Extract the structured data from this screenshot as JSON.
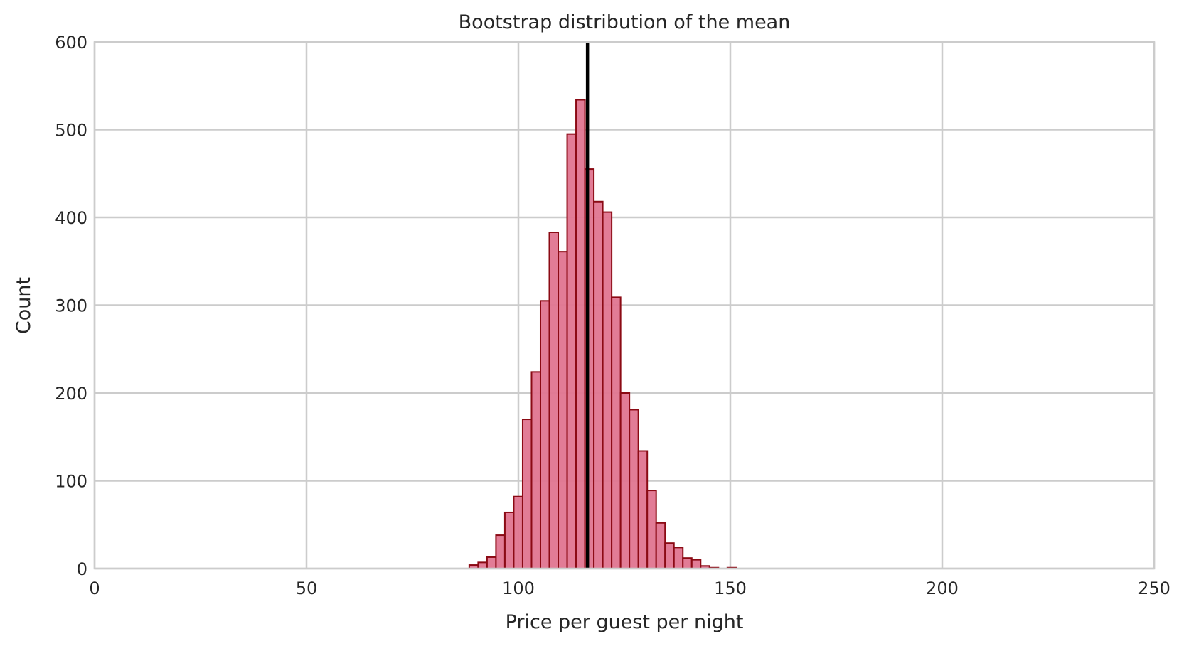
{
  "chart_data": {
    "type": "bar",
    "title": "Bootstrap distribution of the mean",
    "xlabel": "Price per guest per night",
    "ylabel": "Count",
    "xlim": [
      0,
      250
    ],
    "ylim": [
      0,
      600
    ],
    "xticks": [
      0,
      50,
      100,
      150,
      200,
      250
    ],
    "yticks": [
      0,
      100,
      200,
      300,
      400,
      500,
      600
    ],
    "grid": true,
    "bin_width": 2.1,
    "bin_start": 88.4,
    "counts": [
      4,
      7,
      13,
      38,
      64,
      82,
      170,
      224,
      305,
      383,
      361,
      495,
      534,
      455,
      418,
      406,
      309,
      200,
      181,
      134,
      89,
      52,
      29,
      24,
      12,
      10,
      3,
      1,
      0,
      1
    ],
    "mean_line": 116.3,
    "colors": {
      "bar_fill": "#e07590",
      "bar_edge": "#8b0a14",
      "mean_line": "#000000",
      "grid": "#cccccc",
      "text": "#262626"
    }
  }
}
